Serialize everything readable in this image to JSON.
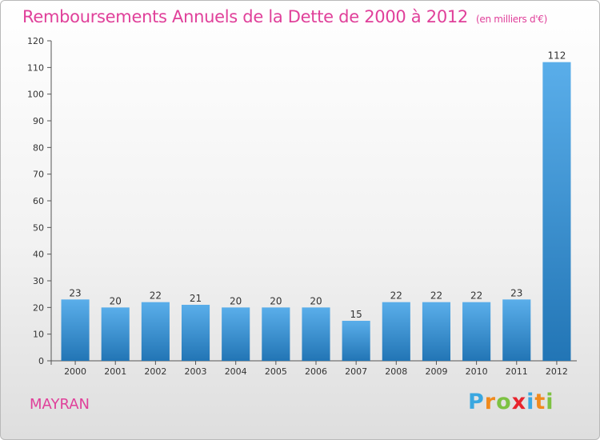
{
  "header": {
    "title": "Remboursements Annuels de la Dette de 2000 à 2012",
    "unit": "(en milliers d'€)"
  },
  "footer": {
    "commune": "MAYRAN",
    "logo_letters": [
      "P",
      "r",
      "o",
      "x",
      "i",
      "t",
      "i"
    ],
    "logo_colors": [
      "#3aa7e0",
      "#f08a1d",
      "#7dc242",
      "#e8242d",
      "#3aa7e0",
      "#f08a1d",
      "#7dc242"
    ]
  },
  "chart_data": {
    "type": "bar",
    "title": "Remboursements Annuels de la Dette de 2000 à 2012",
    "ylabel": "",
    "xlabel": "",
    "categories": [
      "2000",
      "2001",
      "2002",
      "2003",
      "2004",
      "2005",
      "2006",
      "2007",
      "2008",
      "2009",
      "2010",
      "2011",
      "2012"
    ],
    "values": [
      23,
      20,
      22,
      21,
      20,
      20,
      20,
      15,
      22,
      22,
      22,
      23,
      112
    ],
    "ylim": [
      0,
      120
    ],
    "yticks": [
      0,
      10,
      20,
      30,
      40,
      50,
      60,
      70,
      80,
      90,
      100,
      110,
      120
    ],
    "grid": false,
    "bar_color_top": "#5aaeea",
    "bar_color_bottom": "#2275b5"
  }
}
